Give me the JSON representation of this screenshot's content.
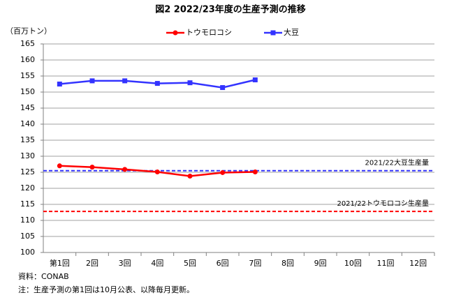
{
  "chart_data": {
    "type": "line",
    "title": "図2  2022/23年度の生産予測の推移",
    "y_label": "（百万トン）",
    "categories": [
      "第1回",
      "2回",
      "3回",
      "4回",
      "5回",
      "6回",
      "7回",
      "8回",
      "9回",
      "10回",
      "11回",
      "12回"
    ],
    "series": [
      {
        "name": "トウモロコシ",
        "color": "#ff0000",
        "marker": "circle",
        "values": [
          127.0,
          126.6,
          125.9,
          125.1,
          123.8,
          124.9,
          125.1,
          null,
          null,
          null,
          null,
          null
        ]
      },
      {
        "name": "大豆",
        "color": "#3333ff",
        "marker": "square",
        "values": [
          152.5,
          153.5,
          153.5,
          152.7,
          152.9,
          151.4,
          153.8,
          null,
          null,
          null,
          null,
          null
        ]
      }
    ],
    "reference_lines": [
      {
        "label": "2021/22大豆生産量",
        "value": 125.5,
        "color": "#3333ff"
      },
      {
        "label": "2021/22トウモロコシ生産量",
        "value": 112.8,
        "color": "#ff0000"
      }
    ],
    "ylim": [
      100,
      165
    ],
    "yticks": [
      100,
      105,
      110,
      115,
      120,
      125,
      130,
      135,
      140,
      145,
      150,
      155,
      160,
      165
    ],
    "grid": true,
    "legend": "top",
    "notes": [
      "資料：CONAB",
      "注：生産予測の第1回は10月公表、以降毎月更新。"
    ]
  }
}
